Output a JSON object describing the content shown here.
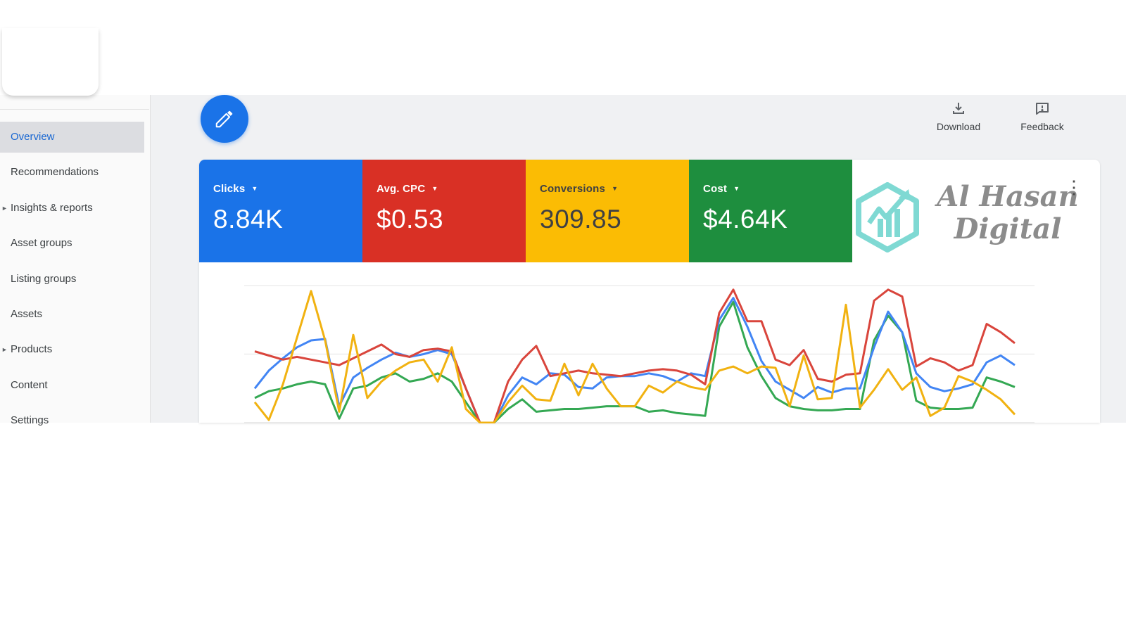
{
  "sidebar": {
    "items": [
      {
        "label": "Overview",
        "active": true,
        "chevron": false
      },
      {
        "label": "Recommendations",
        "active": false,
        "chevron": false
      },
      {
        "label": "Insights & reports",
        "active": false,
        "chevron": true
      },
      {
        "label": "Asset groups",
        "active": false,
        "chevron": false
      },
      {
        "label": "Listing groups",
        "active": false,
        "chevron": false
      },
      {
        "label": "Assets",
        "active": false,
        "chevron": false
      },
      {
        "label": "Products",
        "active": false,
        "chevron": true
      },
      {
        "label": "Content",
        "active": false,
        "chevron": false
      },
      {
        "label": "Settings",
        "active": false,
        "chevron": false
      }
    ],
    "active_color": "#1967d2"
  },
  "toolbar": {
    "edit_fab_icon": "pencil-icon",
    "download_label": "Download",
    "download_icon": "download-icon",
    "feedback_label": "Feedback",
    "feedback_icon": "feedback-icon"
  },
  "metrics": [
    {
      "label": "Clicks",
      "value": "8.84K",
      "bg": "#1a73e8",
      "fg": "#ffffff"
    },
    {
      "label": "Avg. CPC",
      "value": "$0.53",
      "bg": "#d93025",
      "fg": "#ffffff"
    },
    {
      "label": "Conversions",
      "value": "309.85",
      "bg": "#fbbc04",
      "fg": "#3f4043"
    },
    {
      "label": "Cost",
      "value": "$4.64K",
      "bg": "#1e8e3e",
      "fg": "#ffffff"
    }
  ],
  "brand": {
    "name_line1": "Al Hasan",
    "name_line2": "Digital",
    "text_color": "#8c8c8c",
    "icon": "chart-hexagon-logo-icon",
    "icon_color": "#7fd9d3",
    "menu_icon": "kebab-menu-icon"
  },
  "chart_data": {
    "type": "line",
    "title": "",
    "xlabel": "",
    "ylabel": "",
    "x_axis_labels": [],
    "ylim": [
      0,
      110
    ],
    "grid": true,
    "gridline_values": [
      0,
      50,
      100
    ],
    "legend_position": "none",
    "scale_note": "no axis labels visible; y values are relative estimates on a 0-100 scale read from gridlines",
    "series": [
      {
        "name": "Clicks",
        "color": "#4285f4",
        "z": 2,
        "values": [
          25,
          38,
          47,
          55,
          60,
          61,
          12,
          33,
          40,
          46,
          51,
          48,
          50,
          53,
          50,
          25,
          0,
          0,
          20,
          33,
          28,
          36,
          35,
          26,
          25,
          33,
          34,
          34,
          36,
          34,
          30,
          36,
          34,
          75,
          91,
          70,
          45,
          30,
          24,
          18,
          26,
          22,
          25,
          25,
          55,
          81,
          66,
          36,
          26,
          23,
          25,
          28,
          44,
          49,
          42
        ]
      },
      {
        "name": "Avg. CPC",
        "color": "#d9453c",
        "z": 3,
        "values": [
          52,
          49,
          46,
          48,
          46,
          44,
          42,
          47,
          52,
          57,
          50,
          48,
          53,
          54,
          52,
          25,
          0,
          0,
          30,
          46,
          56,
          34,
          36,
          38,
          36,
          35,
          34,
          36,
          38,
          39,
          38,
          35,
          28,
          80,
          97,
          74,
          74,
          46,
          42,
          53,
          32,
          30,
          35,
          36,
          89,
          97,
          92,
          41,
          47,
          44,
          38,
          42,
          72,
          66,
          58
        ]
      },
      {
        "name": "Conversions",
        "color": "#f1b211",
        "z": 4,
        "values": [
          15,
          2,
          28,
          62,
          96,
          60,
          8,
          64,
          18,
          30,
          38,
          44,
          46,
          30,
          55,
          10,
          0,
          0,
          15,
          27,
          17,
          16,
          43,
          20,
          43,
          25,
          12,
          12,
          27,
          22,
          30,
          26,
          24,
          38,
          41,
          36,
          41,
          40,
          12,
          49,
          17,
          18,
          86,
          11,
          24,
          39,
          24,
          33,
          5,
          11,
          34,
          30,
          24,
          17,
          6
        ]
      },
      {
        "name": "Cost",
        "color": "#34a853",
        "z": 1,
        "values": [
          18,
          23,
          25,
          28,
          30,
          28,
          3,
          25,
          27,
          33,
          36,
          30,
          32,
          36,
          30,
          15,
          0,
          0,
          10,
          17,
          8,
          9,
          10,
          10,
          11,
          12,
          12,
          12,
          8,
          9,
          7,
          6,
          5,
          70,
          88,
          55,
          34,
          18,
          12,
          10,
          9,
          9,
          10,
          10,
          60,
          78,
          66,
          16,
          11,
          10,
          10,
          11,
          33,
          30,
          26
        ]
      }
    ]
  }
}
